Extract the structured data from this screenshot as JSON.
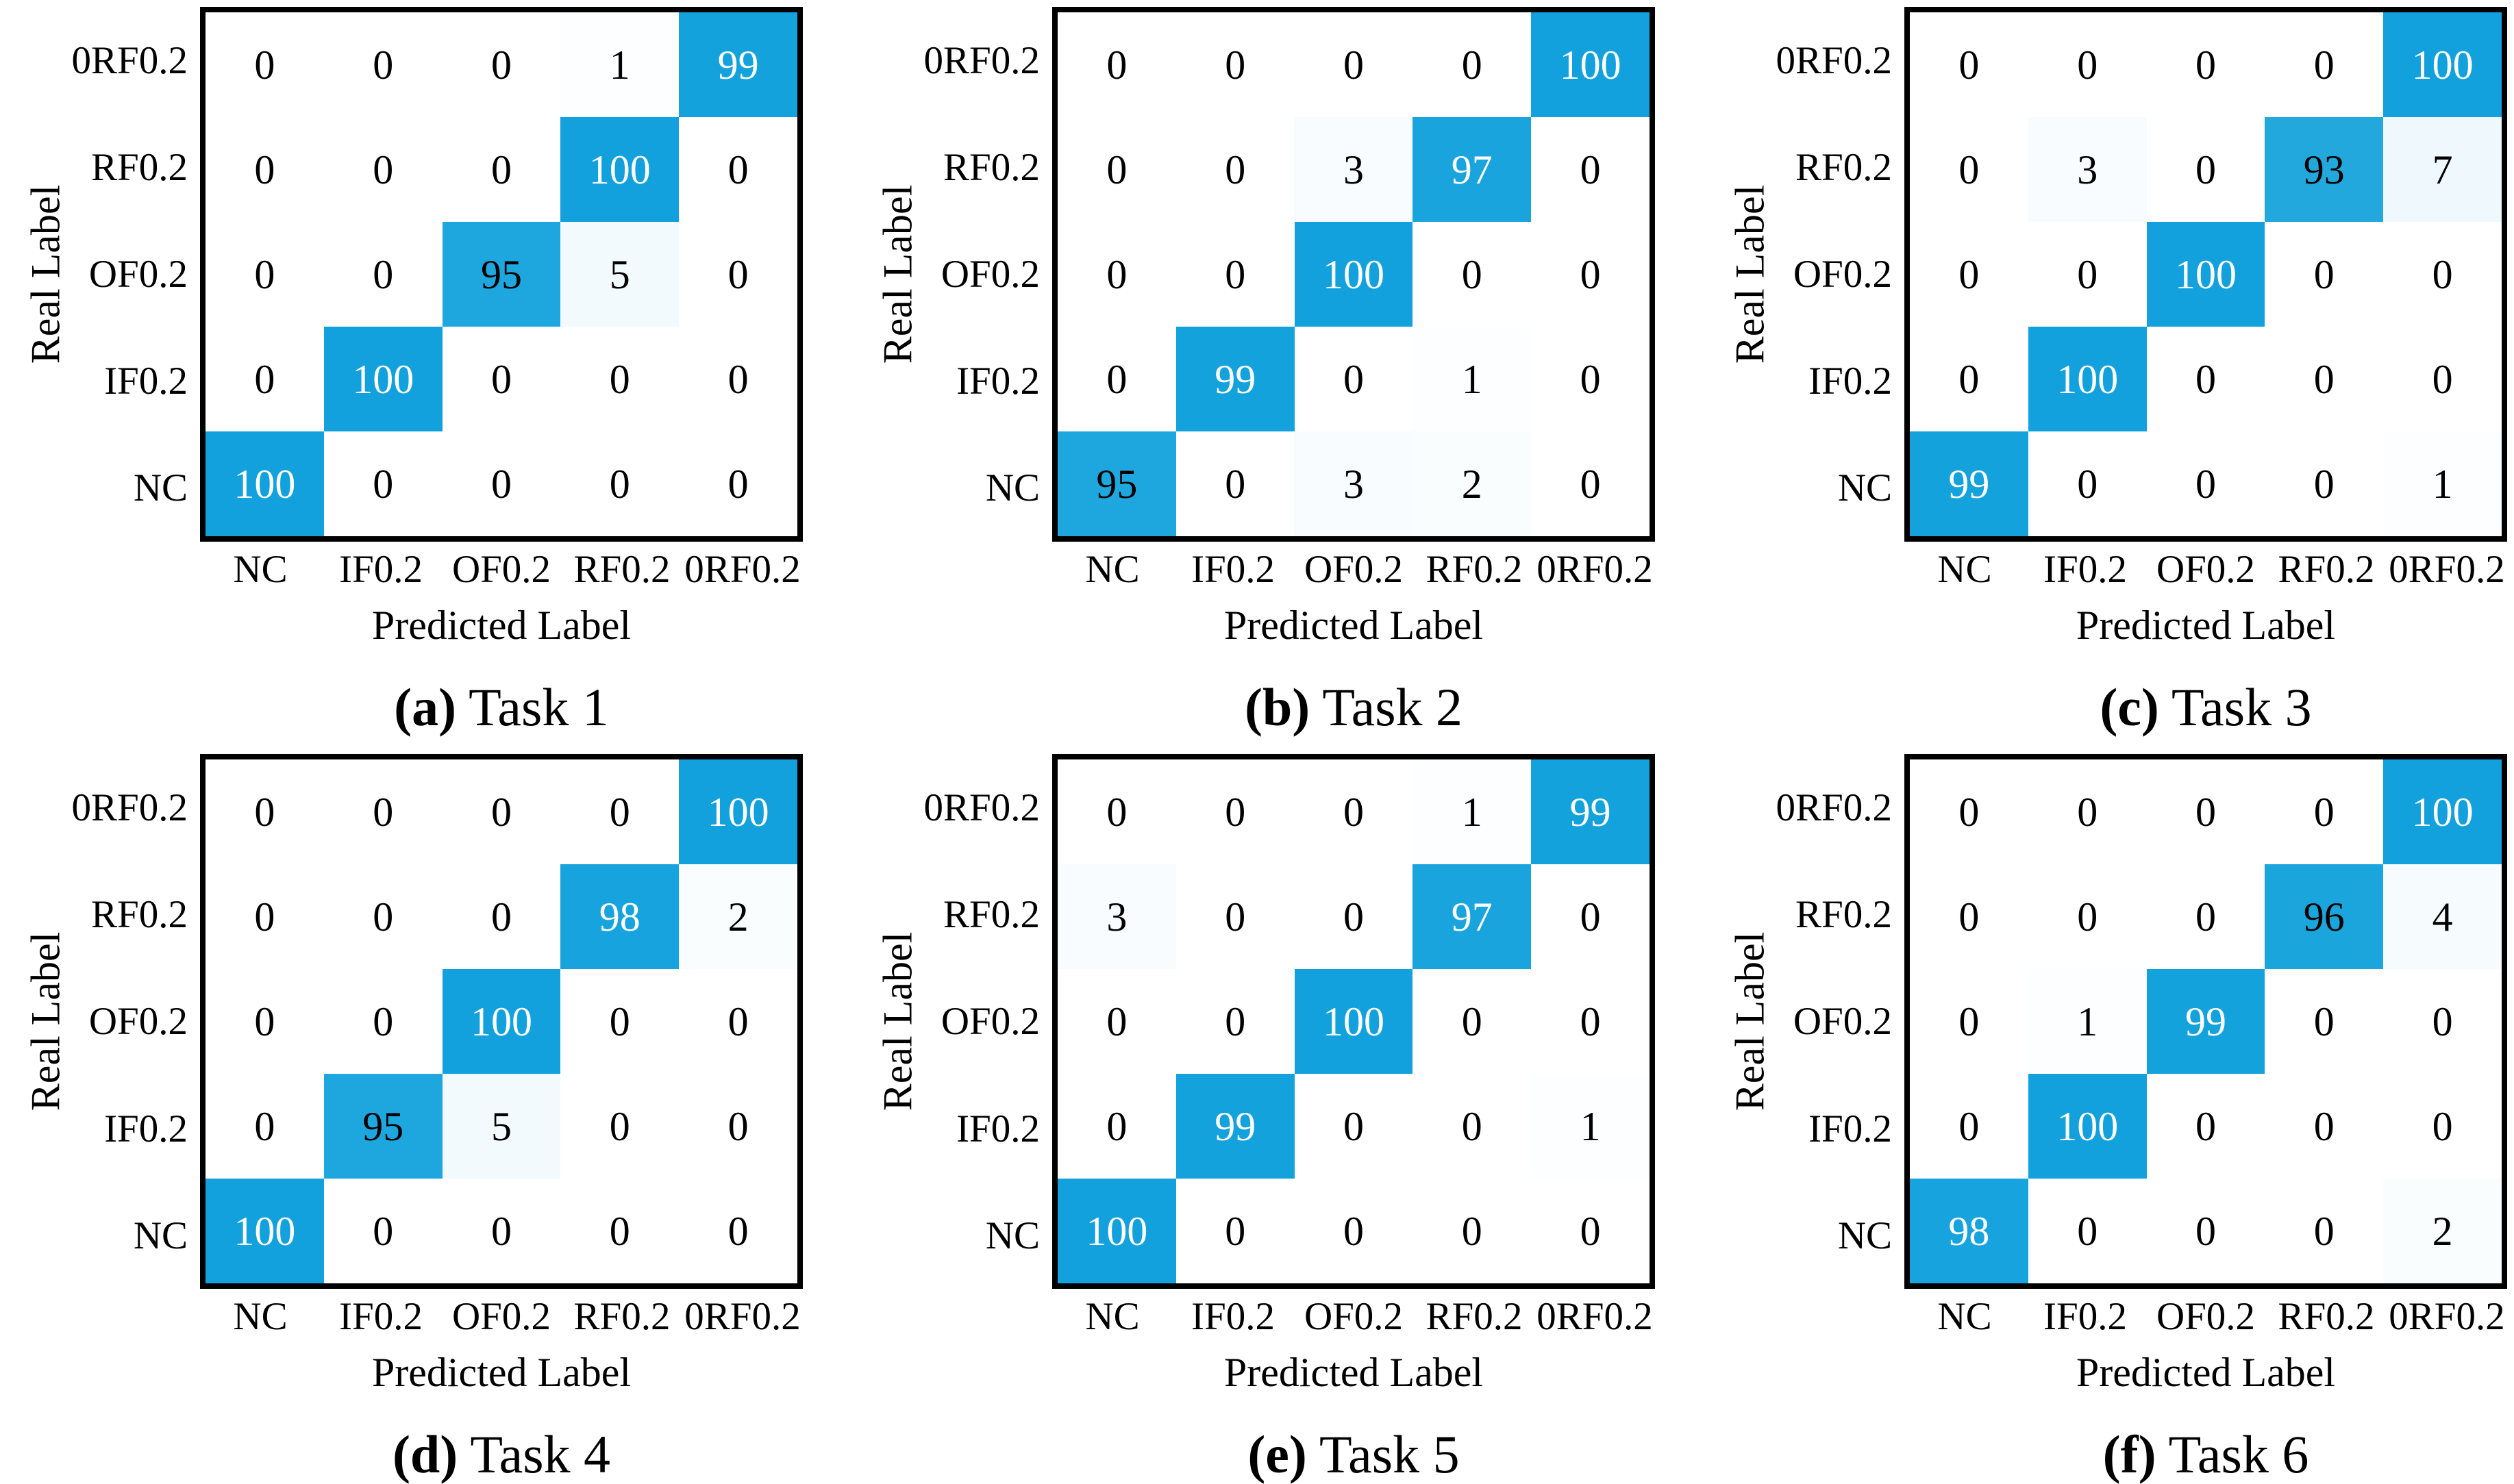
{
  "style": {
    "cell_blue": "#12A1DC",
    "cell_white": "#FFFFFF",
    "value_text_dark": "#000000",
    "value_text_light": "#FFFFFF",
    "white_text_threshold": 97,
    "border_black": "#000000"
  },
  "chart_data": [
    {
      "type": "heatmap",
      "caption_label": "(a)",
      "caption_title": "Task 1",
      "xlabel": "Predicted Label",
      "ylabel": "Real Label",
      "x_categories": [
        "NC",
        "IF0.2",
        "OF0.2",
        "RF0.2",
        "0RF0.2"
      ],
      "y_categories": [
        "0RF0.2",
        "RF0.2",
        "OF0.2",
        "IF0.2",
        "NC"
      ],
      "value_range": [
        0,
        100
      ],
      "values": [
        [
          0,
          0,
          0,
          1,
          99
        ],
        [
          0,
          0,
          0,
          100,
          0
        ],
        [
          0,
          0,
          95,
          5,
          0
        ],
        [
          0,
          100,
          0,
          0,
          0
        ],
        [
          100,
          0,
          0,
          0,
          0
        ]
      ]
    },
    {
      "type": "heatmap",
      "caption_label": "(b)",
      "caption_title": "Task 2",
      "xlabel": "Predicted Label",
      "ylabel": "Real Label",
      "x_categories": [
        "NC",
        "IF0.2",
        "OF0.2",
        "RF0.2",
        "0RF0.2"
      ],
      "y_categories": [
        "0RF0.2",
        "RF0.2",
        "OF0.2",
        "IF0.2",
        "NC"
      ],
      "value_range": [
        0,
        100
      ],
      "values": [
        [
          0,
          0,
          0,
          0,
          100
        ],
        [
          0,
          0,
          3,
          97,
          0
        ],
        [
          0,
          0,
          100,
          0,
          0
        ],
        [
          0,
          99,
          0,
          1,
          0
        ],
        [
          95,
          0,
          3,
          2,
          0
        ]
      ]
    },
    {
      "type": "heatmap",
      "caption_label": "(c)",
      "caption_title": "Task 3",
      "xlabel": "Predicted Label",
      "ylabel": "Real Label",
      "x_categories": [
        "NC",
        "IF0.2",
        "OF0.2",
        "RF0.2",
        "0RF0.2"
      ],
      "y_categories": [
        "0RF0.2",
        "RF0.2",
        "OF0.2",
        "IF0.2",
        "NC"
      ],
      "value_range": [
        0,
        100
      ],
      "values": [
        [
          0,
          0,
          0,
          0,
          100
        ],
        [
          0,
          3,
          0,
          93,
          7
        ],
        [
          0,
          0,
          100,
          0,
          0
        ],
        [
          0,
          100,
          0,
          0,
          0
        ],
        [
          99,
          0,
          0,
          0,
          1
        ]
      ]
    },
    {
      "type": "heatmap",
      "caption_label": "(d)",
      "caption_title": "Task 4",
      "xlabel": "Predicted Label",
      "ylabel": "Real Label",
      "x_categories": [
        "NC",
        "IF0.2",
        "OF0.2",
        "RF0.2",
        "0RF0.2"
      ],
      "y_categories": [
        "0RF0.2",
        "RF0.2",
        "OF0.2",
        "IF0.2",
        "NC"
      ],
      "value_range": [
        0,
        100
      ],
      "values": [
        [
          0,
          0,
          0,
          0,
          100
        ],
        [
          0,
          0,
          0,
          98,
          2
        ],
        [
          0,
          0,
          100,
          0,
          0
        ],
        [
          0,
          95,
          5,
          0,
          0
        ],
        [
          100,
          0,
          0,
          0,
          0
        ]
      ]
    },
    {
      "type": "heatmap",
      "caption_label": "(e)",
      "caption_title": "Task 5",
      "xlabel": "Predicted Label",
      "ylabel": "Real Label",
      "x_categories": [
        "NC",
        "IF0.2",
        "OF0.2",
        "RF0.2",
        "0RF0.2"
      ],
      "y_categories": [
        "0RF0.2",
        "RF0.2",
        "OF0.2",
        "IF0.2",
        "NC"
      ],
      "value_range": [
        0,
        100
      ],
      "values": [
        [
          0,
          0,
          0,
          1,
          99
        ],
        [
          3,
          0,
          0,
          97,
          0
        ],
        [
          0,
          0,
          100,
          0,
          0
        ],
        [
          0,
          99,
          0,
          0,
          1
        ],
        [
          100,
          0,
          0,
          0,
          0
        ]
      ]
    },
    {
      "type": "heatmap",
      "caption_label": "(f)",
      "caption_title": "Task 6",
      "xlabel": "Predicted Label",
      "ylabel": "Real Label",
      "x_categories": [
        "NC",
        "IF0.2",
        "OF0.2",
        "RF0.2",
        "0RF0.2"
      ],
      "y_categories": [
        "0RF0.2",
        "RF0.2",
        "OF0.2",
        "IF0.2",
        "NC"
      ],
      "value_range": [
        0,
        100
      ],
      "values": [
        [
          0,
          0,
          0,
          0,
          100
        ],
        [
          0,
          0,
          0,
          96,
          4
        ],
        [
          0,
          1,
          99,
          0,
          0
        ],
        [
          0,
          100,
          0,
          0,
          0
        ],
        [
          98,
          0,
          0,
          0,
          2
        ]
      ]
    }
  ]
}
